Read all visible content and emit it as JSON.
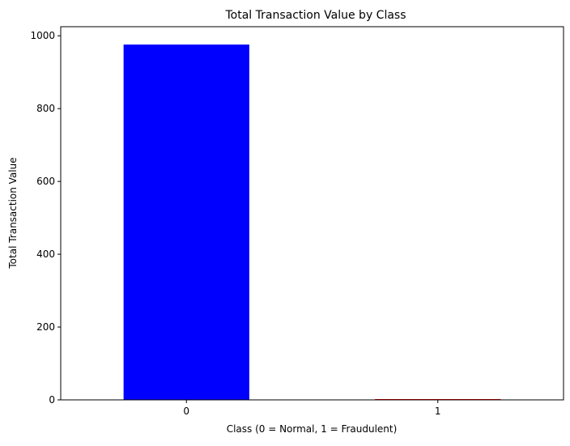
{
  "chart_data": {
    "type": "bar",
    "title": "Total Transaction Value by Class",
    "xlabel": "Class (0 = Normal, 1 = Fraudulent)",
    "ylabel": "Total Transaction Value",
    "categories": [
      "0",
      "1"
    ],
    "values": [
      976,
      2
    ],
    "colors": [
      "#0000ff",
      "#ff0000"
    ],
    "ylim": [
      0,
      1025
    ],
    "yticks": [
      0,
      200,
      400,
      600,
      800,
      1000
    ],
    "grid": false,
    "legend": "none"
  }
}
